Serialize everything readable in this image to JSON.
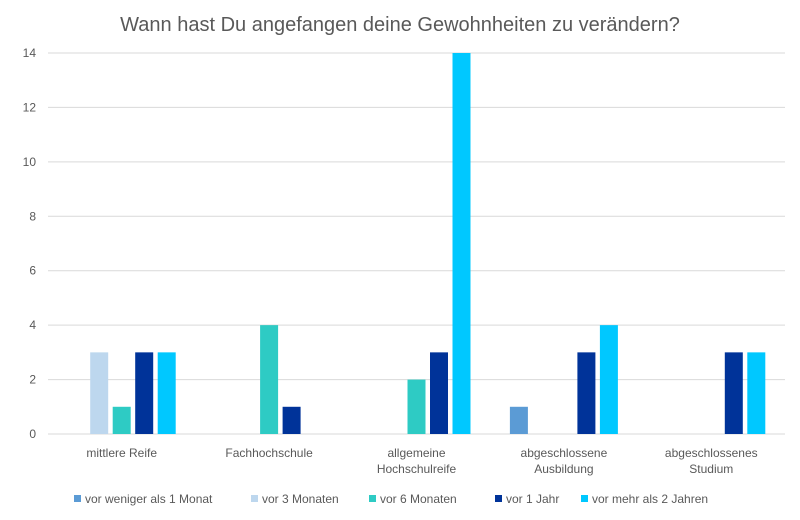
{
  "chart_data": {
    "type": "bar",
    "title": "Wann hast Du angefangen deine Gewohnheiten zu verändern?",
    "xlabel": "",
    "ylabel": "",
    "ylim": [
      0,
      14
    ],
    "yticks": [
      0,
      2,
      4,
      6,
      8,
      10,
      12,
      14
    ],
    "grid": true,
    "legend_position": "bottom",
    "categories": [
      [
        "mittlere Reife"
      ],
      [
        "Fachhochschule"
      ],
      [
        "allgemeine",
        "Hochschulreife"
      ],
      [
        "abgeschlossene",
        "Ausbildung"
      ],
      [
        "abgeschlossenes",
        "Studium"
      ]
    ],
    "series": [
      {
        "name": "vor weniger als 1 Monat",
        "color": "#5b9bd5",
        "values": [
          0,
          0,
          0,
          1,
          0
        ]
      },
      {
        "name": "vor 3 Monaten",
        "color": "#bdd7ee",
        "values": [
          3,
          0,
          0,
          0,
          0
        ]
      },
      {
        "name": "vor 6 Monaten",
        "color": "#2ecbc4",
        "values": [
          1,
          4,
          2,
          0,
          0
        ]
      },
      {
        "name": "vor 1 Jahr",
        "color": "#003399",
        "values": [
          3,
          1,
          3,
          3,
          3
        ]
      },
      {
        "name": "vor mehr als 2 Jahren",
        "color": "#00c8ff",
        "values": [
          3,
          0,
          14,
          4,
          3
        ]
      }
    ]
  }
}
